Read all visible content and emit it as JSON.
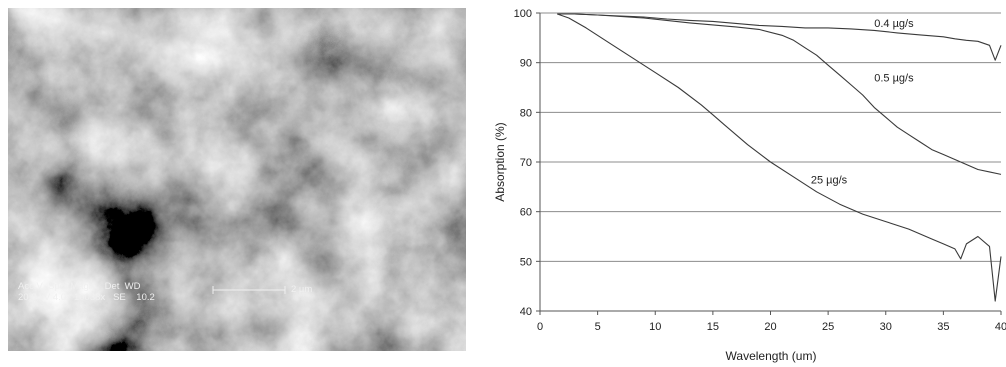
{
  "sem_image": {
    "detector_info": {
      "header": "Acc.V  Spot Magn    Det  WD",
      "values": "20.0 kV 4.0   10038x   SE    10.2"
    },
    "scale_bar_label": "2 µm"
  },
  "chart_data": {
    "type": "line",
    "xlabel": "Wavelength (um)",
    "ylabel": "Absorption (%)",
    "xlim": [
      0,
      40
    ],
    "ylim": [
      40,
      100
    ],
    "xticks": [
      0,
      5,
      10,
      15,
      20,
      25,
      30,
      35,
      40
    ],
    "yticks": [
      40,
      50,
      60,
      70,
      80,
      90,
      100
    ],
    "grid": "horizontal",
    "line_color": "#3a3a3a",
    "series": [
      {
        "name": "0.4 µg/s",
        "x": [
          1.5,
          3,
          5,
          7,
          9,
          11,
          13,
          15,
          17,
          19,
          21,
          23,
          25,
          27,
          29,
          31,
          33,
          35,
          36,
          37,
          38,
          39,
          39.5,
          40
        ],
        "y": [
          99.8,
          99.8,
          99.6,
          99.4,
          99.2,
          98.8,
          98.5,
          98.3,
          97.9,
          97.5,
          97.3,
          97.0,
          97.0,
          96.8,
          96.5,
          96.0,
          95.6,
          95.2,
          94.8,
          94.5,
          94.3,
          93.5,
          90.5,
          93.5
        ],
        "label": "0.4 µg/s"
      },
      {
        "name": "0.5 µg/s",
        "x": [
          1.5,
          3,
          5,
          7,
          9,
          11,
          13,
          15,
          17,
          19,
          21,
          22,
          23,
          24,
          25,
          26,
          27,
          28,
          29,
          30,
          31,
          32,
          33,
          34,
          35,
          36,
          37,
          38,
          39,
          40
        ],
        "y": [
          99.8,
          99.8,
          99.6,
          99.3,
          99.0,
          98.5,
          98.0,
          97.6,
          97.2,
          96.7,
          95.5,
          94.5,
          93.0,
          91.5,
          89.5,
          87.5,
          85.5,
          83.5,
          81.0,
          79.0,
          77.0,
          75.5,
          74.0,
          72.5,
          71.5,
          70.5,
          69.5,
          68.5,
          68.0,
          67.5
        ],
        "label": "0.5 µg/s"
      },
      {
        "name": "25 µg/s",
        "x": [
          1.5,
          2.5,
          4,
          6,
          8,
          10,
          12,
          14,
          15,
          16,
          18,
          20,
          22,
          24,
          26,
          28,
          30,
          32,
          34,
          35,
          36,
          36.5,
          37,
          38,
          39,
          39.5,
          40
        ],
        "y": [
          99.8,
          99.0,
          97.0,
          94.0,
          91.0,
          88.0,
          85.0,
          81.5,
          79.5,
          77.5,
          73.5,
          70.0,
          67.0,
          64.0,
          61.5,
          59.5,
          58.0,
          56.5,
          54.5,
          53.5,
          52.5,
          50.5,
          53.5,
          55.0,
          53.0,
          42.0,
          51.0
        ],
        "label": "25 µg/s"
      }
    ]
  }
}
